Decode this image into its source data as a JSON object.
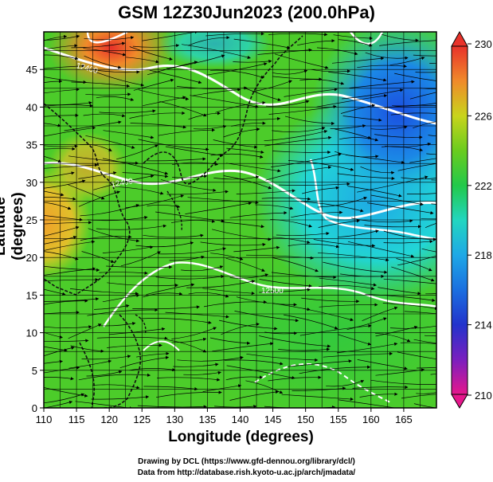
{
  "title": "GSM 12Z30Jun2023 (200.0hPa)",
  "map": {
    "xlabel": "Longitude (degrees)",
    "ylabel": "Latitude  (degrees)",
    "lon_ticks": [
      110,
      115,
      120,
      125,
      130,
      135,
      140,
      145,
      150,
      155,
      160,
      165
    ],
    "lat_ticks": [
      0,
      5,
      10,
      15,
      20,
      25,
      30,
      35,
      40,
      45
    ],
    "lon_range": [
      110,
      170
    ],
    "lat_range": [
      0,
      50
    ],
    "grid": true
  },
  "contours": {
    "labels": [
      "12400",
      "12500",
      "12400"
    ]
  },
  "colorbar": {
    "ticks": [
      230,
      226,
      222,
      218,
      214,
      210
    ],
    "range": [
      210,
      230
    ],
    "colors": [
      "#e6178c",
      "#7a1fbf",
      "#2233cc",
      "#1b88e6",
      "#22d6d6",
      "#22c96a",
      "#44cc22",
      "#9ed61c",
      "#e8c52a",
      "#f07a2a",
      "#e8322a"
    ]
  },
  "credits": {
    "line1": "Drawing by DCL (https://www.gfd-dennou.org/library/dcl/)",
    "line2": "Data from http://database.rish.kyoto-u.ac.jp/arch/jmadata/"
  }
}
